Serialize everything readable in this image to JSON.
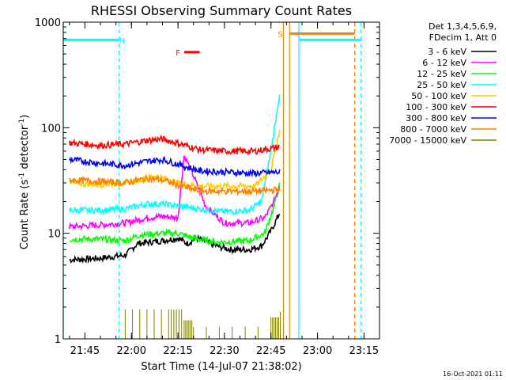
{
  "chart_data": {
    "type": "line",
    "title": "RHESSI Observing Summary Count Rates",
    "xlabel": "Start Time (14-Jul-07 21:38:02)",
    "ylabel_parts": [
      "Count Rate (s",
      "-1",
      " detector",
      "-1",
      ")"
    ],
    "yscale": "log",
    "ylim": [
      1,
      1000
    ],
    "xlim": [
      "21:38",
      "23:20"
    ],
    "grid": false,
    "legend_position": "right",
    "legend_header": [
      "Det 1,3,4,5,6,9,",
      "FDecim 1, Att 0"
    ],
    "x_ticks": [
      "21:45",
      "22:00",
      "22:15",
      "22:30",
      "22:45",
      "23:00",
      "23:15"
    ],
    "y_ticks": [
      "1",
      "10",
      "100",
      "1000"
    ],
    "series": [
      {
        "name": "3 - 6 keV",
        "color": "#000000",
        "points": [
          [
            "21:40",
            5.6
          ],
          [
            "21:50",
            5.8
          ],
          [
            "21:58",
            6.2
          ],
          [
            "22:02",
            8.0
          ],
          [
            "22:10",
            8.5
          ],
          [
            "22:15",
            9.0
          ],
          [
            "22:18",
            8.0
          ],
          [
            "22:21",
            9.0
          ],
          [
            "22:26",
            7.8
          ],
          [
            "22:32",
            7.0
          ],
          [
            "22:38",
            7.0
          ],
          [
            "22:42",
            7.6
          ],
          [
            "22:45",
            10.5
          ],
          [
            "22:48",
            16.0
          ]
        ]
      },
      {
        "name": "6 - 12 keV",
        "color": "#ff00ff",
        "points": [
          [
            "21:40",
            11.5
          ],
          [
            "21:50",
            12.0
          ],
          [
            "21:58",
            12.5
          ],
          [
            "22:05",
            14.0
          ],
          [
            "22:10",
            14.5
          ],
          [
            "22:15",
            14.0
          ],
          [
            "22:17",
            55.0
          ],
          [
            "22:20",
            35.0
          ],
          [
            "22:24",
            18.0
          ],
          [
            "22:30",
            12.5
          ],
          [
            "22:38",
            12.5
          ],
          [
            "22:43",
            14.0
          ],
          [
            "22:46",
            20.0
          ],
          [
            "22:48",
            30.0
          ]
        ]
      },
      {
        "name": "12 - 25 keV",
        "color": "#00ff00",
        "points": [
          [
            "21:40",
            8.8
          ],
          [
            "21:50",
            8.8
          ],
          [
            "21:58",
            8.5
          ],
          [
            "22:03",
            9.7
          ],
          [
            "22:10",
            10.0
          ],
          [
            "22:15",
            10.0
          ],
          [
            "22:20",
            9.0
          ],
          [
            "22:28",
            8.2
          ],
          [
            "22:38",
            8.5
          ],
          [
            "22:43",
            10.0
          ],
          [
            "22:46",
            18.0
          ],
          [
            "22:48",
            30.0
          ]
        ]
      },
      {
        "name": "25 - 50 keV",
        "color": "#00ffff",
        "points": [
          [
            "21:40",
            16.5
          ],
          [
            "21:50",
            16.5
          ],
          [
            "21:58",
            17.0
          ],
          [
            "22:05",
            19.0
          ],
          [
            "22:10",
            19.0
          ],
          [
            "22:16",
            18.0
          ],
          [
            "22:22",
            17.0
          ],
          [
            "22:30",
            16.0
          ],
          [
            "22:38",
            16.5
          ],
          [
            "22:42",
            20.0
          ],
          [
            "22:45",
            60.0
          ],
          [
            "22:48",
            230.0
          ]
        ]
      },
      {
        "name": "50 - 100 keV",
        "color": "#ffcc00",
        "points": [
          [
            "21:40",
            30.0
          ],
          [
            "21:50",
            29.0
          ],
          [
            "21:58",
            30.0
          ],
          [
            "22:08",
            35.0
          ],
          [
            "22:15",
            30.0
          ],
          [
            "22:22",
            28.0
          ],
          [
            "22:30",
            28.0
          ],
          [
            "22:40",
            28.0
          ],
          [
            "22:45",
            40.0
          ],
          [
            "22:48",
            100.0
          ]
        ]
      },
      {
        "name": "100 - 300 keV",
        "color": "#ff0000",
        "points": [
          [
            "21:40",
            72.0
          ],
          [
            "21:50",
            68.0
          ],
          [
            "21:58",
            70.0
          ],
          [
            "22:05",
            76.0
          ],
          [
            "22:10",
            78.0
          ],
          [
            "22:16",
            70.0
          ],
          [
            "22:22",
            62.0
          ],
          [
            "22:30",
            60.0
          ],
          [
            "22:40",
            60.0
          ],
          [
            "22:48",
            66.0
          ]
        ]
      },
      {
        "name": "300 - 800 keV",
        "color": "#0000ff",
        "points": [
          [
            "21:40",
            50.0
          ],
          [
            "21:50",
            46.0
          ],
          [
            "21:58",
            44.0
          ],
          [
            "22:05",
            48.0
          ],
          [
            "22:10",
            50.0
          ],
          [
            "22:16",
            44.0
          ],
          [
            "22:22",
            39.0
          ],
          [
            "22:30",
            38.0
          ],
          [
            "22:40",
            37.0
          ],
          [
            "22:48",
            38.0
          ]
        ]
      },
      {
        "name": "800 - 7000 keV",
        "color": "#ff8000",
        "points": [
          [
            "21:40",
            32.0
          ],
          [
            "21:50",
            31.0
          ],
          [
            "21:58",
            30.0
          ],
          [
            "22:05",
            33.0
          ],
          [
            "22:10",
            32.0
          ],
          [
            "22:16",
            28.0
          ],
          [
            "22:22",
            25.0
          ],
          [
            "22:30",
            25.0
          ],
          [
            "22:40",
            25.0
          ],
          [
            "22:48",
            26.0
          ]
        ]
      },
      {
        "name": "7000 - 15000 keV",
        "color": "#808000",
        "points": [
          [
            "21:58",
            1.9
          ],
          [
            "22:12",
            1.9
          ],
          [
            "22:17",
            1.5
          ],
          [
            "22:20",
            1.3
          ],
          [
            "22:45",
            1.6
          ],
          [
            "22:48",
            1.8
          ]
        ]
      }
    ],
    "annotations": {
      "intervals": [
        {
          "label": "N",
          "color": "#00ffff",
          "start": "21:38",
          "end": "21:56",
          "y": 680,
          "label_at": "21:57"
        },
        {
          "label": "",
          "color": "#00ffff",
          "start": "22:54",
          "end": "23:14",
          "y": 680
        },
        {
          "label": "S",
          "color": "#ff8000",
          "start": "22:51",
          "end": "23:12",
          "y": 780,
          "label_at": "22:48"
        },
        {
          "label": "F",
          "color": "#ff0000",
          "start": "22:17",
          "end": "22:22",
          "y": 520,
          "label_at": "22:15"
        }
      ],
      "vlines": [
        {
          "t": "21:38",
          "color": "#00ffff",
          "style": "solid"
        },
        {
          "t": "21:56",
          "color": "#00ffff",
          "style": "dashed"
        },
        {
          "t": "22:49",
          "color": "#ff8000",
          "style": "solid"
        },
        {
          "t": "22:51",
          "color": "#ff8000",
          "style": "solid"
        },
        {
          "t": "22:54",
          "color": "#00ffff",
          "style": "solid"
        },
        {
          "t": "23:12",
          "color": "#ff8000",
          "style": "dashed"
        },
        {
          "t": "23:14",
          "color": "#00ffff",
          "style": "dashed"
        }
      ]
    }
  },
  "footer": {
    "timestamp": "16-Oct-2021 01:11"
  }
}
